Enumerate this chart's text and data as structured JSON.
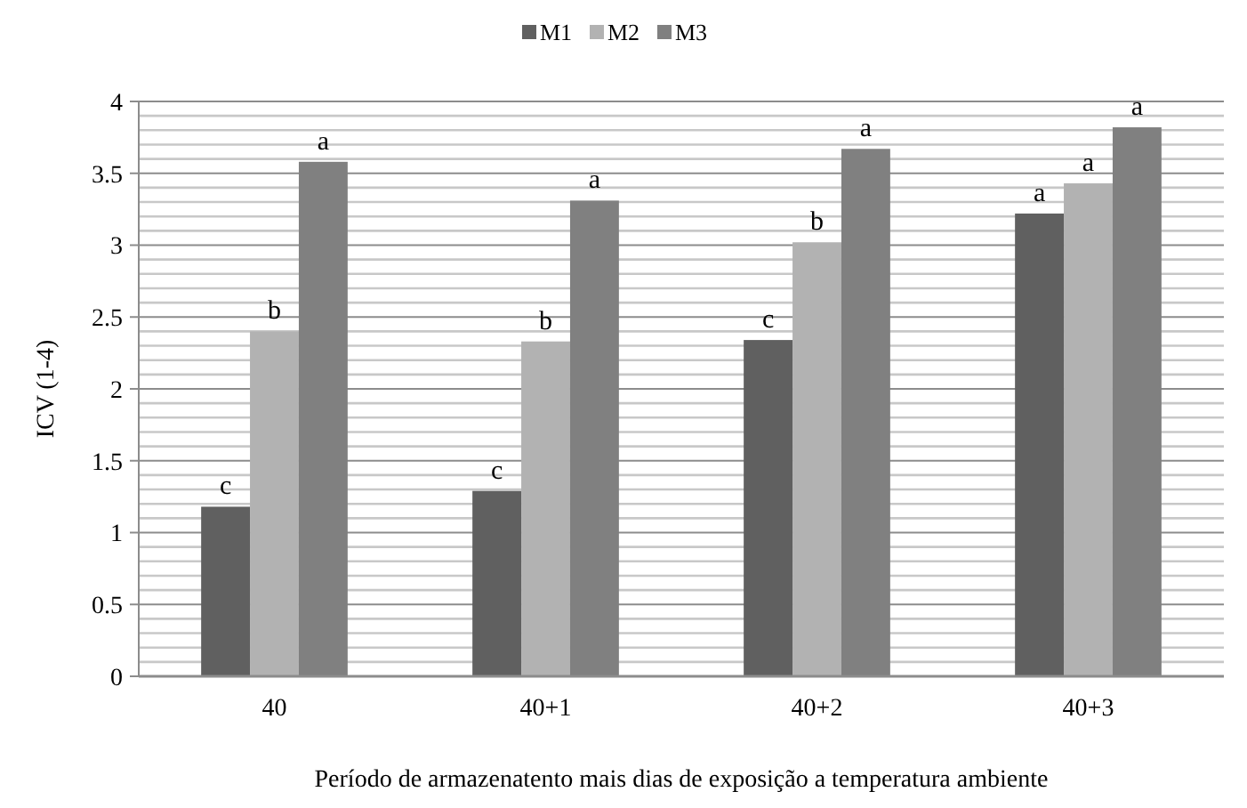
{
  "chart_data": {
    "type": "bar",
    "xlabel": "Período de armazenatento mais dias de exposição a temperatura ambiente",
    "ylabel": "ICV (1-4)",
    "categories": [
      "40",
      "40+1",
      "40+2",
      "40+3"
    ],
    "series": [
      {
        "name": "M1",
        "color": "#606060",
        "values": [
          1.18,
          1.29,
          2.34,
          3.22
        ],
        "value_labels": [
          "c",
          "c",
          "c",
          "a"
        ]
      },
      {
        "name": "M2",
        "color": "#b2b2b2",
        "values": [
          2.4,
          2.33,
          3.02,
          3.43
        ],
        "value_labels": [
          "b",
          "b",
          "b",
          "a"
        ]
      },
      {
        "name": "M3",
        "color": "#808080",
        "values": [
          3.58,
          3.31,
          3.67,
          3.82
        ],
        "value_labels": [
          "a",
          "a",
          "a",
          "a"
        ]
      }
    ],
    "ylim": [
      0,
      4
    ],
    "yticks": [
      0,
      {
        "value": 0.1,
        "label": null
      },
      {
        "value": 0.2,
        "label": null
      },
      {
        "value": 0.3,
        "label": null
      },
      {
        "value": 0.4,
        "label": null
      },
      0.5,
      {
        "value": 0.6,
        "label": null
      },
      {
        "value": 0.7,
        "label": null
      },
      {
        "value": 0.8,
        "label": null
      },
      {
        "value": 0.9,
        "label": null
      },
      1,
      {
        "value": 1.1,
        "label": null
      },
      {
        "value": 1.2,
        "label": null
      },
      {
        "value": 1.3,
        "label": null
      },
      {
        "value": 1.4,
        "label": null
      },
      1.5,
      {
        "value": 1.6,
        "label": null
      },
      {
        "value": 1.7,
        "label": null
      },
      {
        "value": 1.8,
        "label": null
      },
      {
        "value": 1.9,
        "label": null
      },
      2,
      {
        "value": 2.1,
        "label": null
      },
      {
        "value": 2.2,
        "label": null
      },
      {
        "value": 2.3,
        "label": null
      },
      {
        "value": 2.4,
        "label": null
      },
      2.5,
      {
        "value": 2.6,
        "label": null
      },
      {
        "value": 2.7,
        "label": null
      },
      {
        "value": 2.8,
        "label": null
      },
      {
        "value": 2.9,
        "label": null
      },
      3,
      {
        "value": 3.1,
        "label": null
      },
      {
        "value": 3.2,
        "label": null
      },
      {
        "value": 3.3,
        "label": null
      },
      {
        "value": 3.4,
        "label": null
      },
      3.5,
      {
        "value": 3.6,
        "label": null
      },
      {
        "value": 3.7,
        "label": null
      },
      {
        "value": 3.8,
        "label": null
      },
      {
        "value": 3.9,
        "label": null
      },
      4
    ],
    "grid": "y",
    "legend": "top"
  }
}
